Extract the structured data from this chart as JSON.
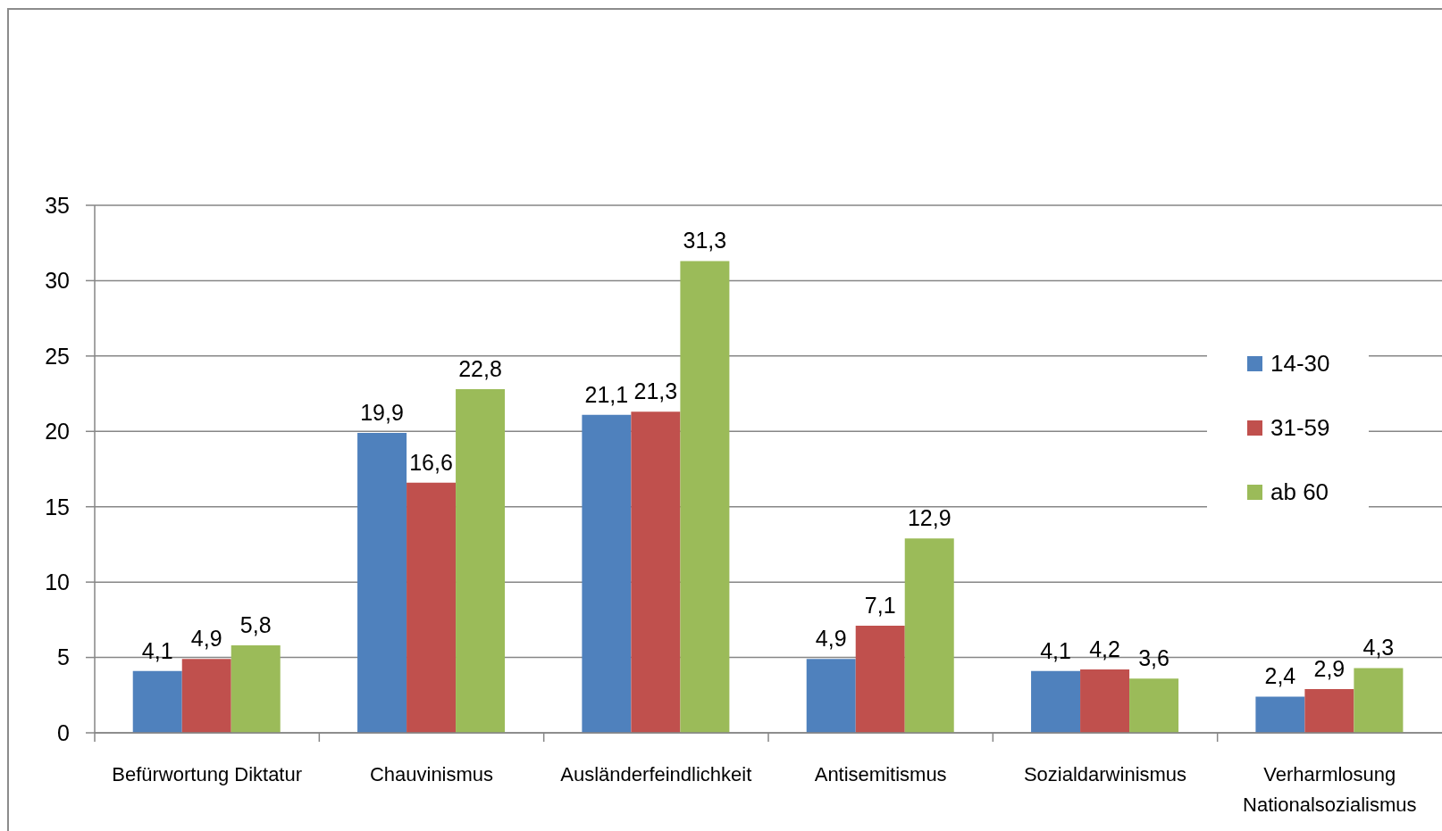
{
  "chart_data": {
    "type": "bar",
    "categories": [
      "Befürwortung Diktatur",
      "Chauvinismus",
      "Ausländerfeindlichkeit",
      "Antisemitismus",
      "Sozialdarwinismus",
      "Verharmlosung Nationalsozialismus"
    ],
    "series": [
      {
        "name": "14-30",
        "color": "#4f81bd",
        "values": [
          4.1,
          19.9,
          21.1,
          4.9,
          4.1,
          2.4
        ],
        "value_labels": [
          "4,1",
          "19,9",
          "21,1",
          "4,9",
          "4,1",
          "2,4"
        ]
      },
      {
        "name": "31-59",
        "color": "#c0504d",
        "values": [
          4.9,
          16.6,
          21.3,
          7.1,
          4.2,
          2.9
        ],
        "value_labels": [
          "4,9",
          "16,6",
          "21,3",
          "7,1",
          "4,2",
          "2,9"
        ]
      },
      {
        "name": "ab 60",
        "color": "#9bbb59",
        "values": [
          5.8,
          22.8,
          31.3,
          12.9,
          3.6,
          4.3
        ],
        "value_labels": [
          "5,8",
          "22,8",
          "31,3",
          "12,9",
          "3,6",
          "4,3"
        ]
      }
    ],
    "ylim": [
      0,
      35
    ],
    "yticks": [
      0,
      5,
      10,
      15,
      20,
      25,
      30,
      35
    ],
    "grid": "y",
    "legend": "right"
  }
}
